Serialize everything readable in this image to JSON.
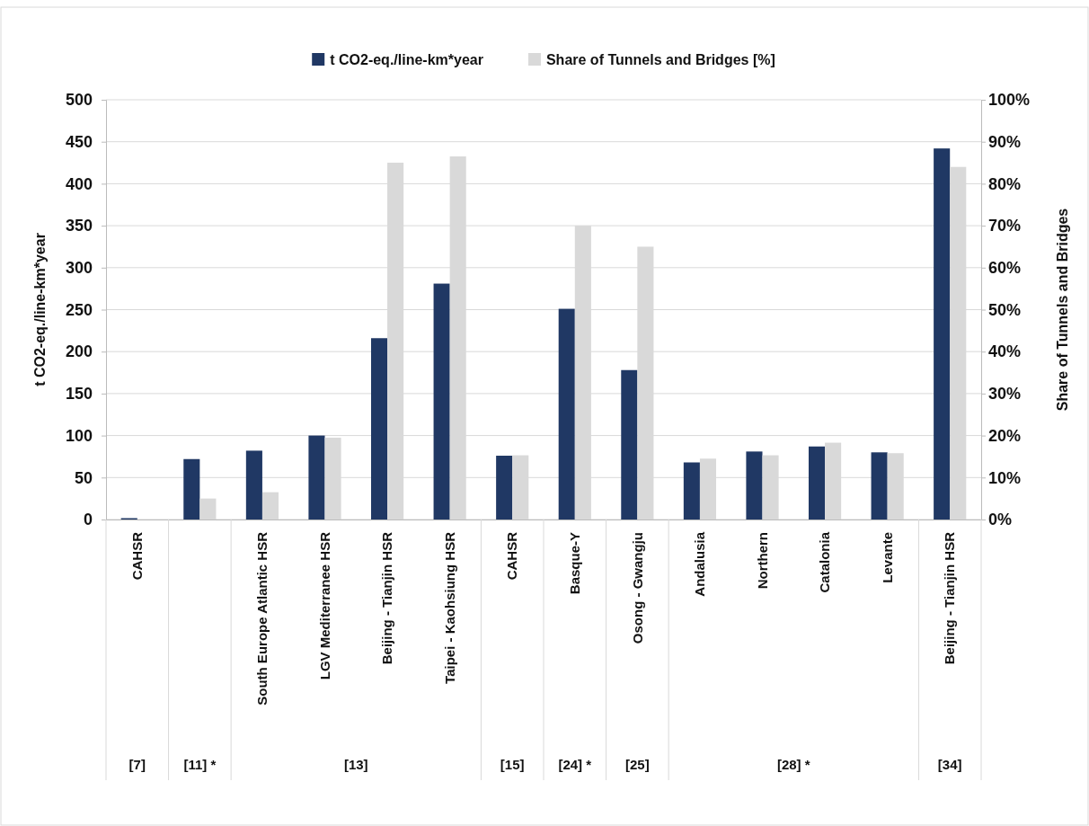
{
  "chart_data": {
    "type": "bar",
    "ylabel": "t CO2-eq./line-km*year",
    "y2label": "Share of Tunnels and Bridges",
    "categories": [
      "CAHSR",
      null,
      "South Europe Atlantic HSR",
      "LGV Mediterranee HSR",
      "Beijing - Tianjin HSR",
      "Taipei - Kaohsiung HSR",
      "CAHSR",
      "Basque-Y",
      "Osong - Gwangju",
      "Andalusia",
      "Northern",
      "Catalonia",
      "Levante",
      "Beijing - Tianjin HSR"
    ],
    "series": [
      {
        "name": "t CO2-eq./line-km*year",
        "color": "#203864",
        "values": [
          1,
          72,
          82,
          100,
          216,
          281,
          76,
          251,
          178,
          68,
          81,
          87,
          80,
          442
        ]
      },
      {
        "name": "Share of Tunnels and Bridges [%]",
        "color": "#d9d9d9",
        "axis": "y2",
        "values": [
          null,
          5,
          6.5,
          19.5,
          85,
          86.5,
          15.3,
          70,
          65,
          14.5,
          15.3,
          18.3,
          15.8,
          84
        ]
      }
    ],
    "ylim": [
      0,
      500
    ],
    "yticks": [
      0,
      50,
      100,
      150,
      200,
      250,
      300,
      350,
      400,
      450,
      500
    ],
    "y2lim": [
      0,
      100
    ],
    "y2ticks": [
      {
        "value": 0,
        "label": "0%"
      },
      {
        "value": 10,
        "label": "10%"
      },
      {
        "value": 20,
        "label": "20%"
      },
      {
        "value": 30,
        "label": "30%"
      },
      {
        "value": 40,
        "label": "40%"
      },
      {
        "value": 50,
        "label": "50%"
      },
      {
        "value": 60,
        "label": "60%"
      },
      {
        "value": 70,
        "label": "70%"
      },
      {
        "value": 80,
        "label": "80%"
      },
      {
        "value": 90,
        "label": "90%"
      },
      {
        "value": 100,
        "label": "100%"
      }
    ],
    "annotations": [
      "[7]",
      "[11] *",
      "[13]",
      "[15]",
      "[24] *",
      "[25]",
      "[28] *",
      "[34]"
    ],
    "grid": "y",
    "legend": "top"
  }
}
